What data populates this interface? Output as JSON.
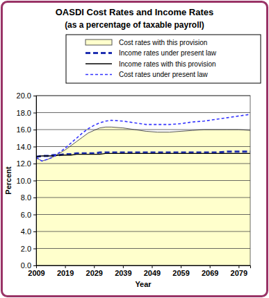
{
  "chart_data": {
    "type": "line",
    "title": "OASDI Cost Rates and Income Rates",
    "subtitle": "(as a percentage of taxable payroll)",
    "xlabel": "Year",
    "ylabel": "Percent",
    "x": [
      2009,
      2011,
      2013,
      2015,
      2017,
      2019,
      2021,
      2023,
      2025,
      2027,
      2029,
      2031,
      2033,
      2035,
      2039,
      2043,
      2047,
      2051,
      2055,
      2059,
      2063,
      2067,
      2071,
      2075,
      2079,
      2083
    ],
    "series": [
      {
        "name": "Cost rates with this provision",
        "type": "area",
        "color": "#ffffcc",
        "line_style": "solid",
        "values": [
          12.7,
          12.3,
          12.5,
          12.8,
          13.2,
          13.6,
          14.1,
          14.6,
          15.1,
          15.6,
          15.9,
          16.2,
          16.3,
          16.3,
          16.2,
          16.0,
          15.8,
          15.7,
          15.7,
          15.8,
          15.9,
          16.0,
          16.0,
          16.0,
          16.0,
          15.9
        ]
      },
      {
        "name": "Income rates under present law",
        "type": "line",
        "color": "#1f2fb0",
        "line_style": "dashed",
        "values": [
          12.8,
          12.9,
          12.9,
          13.0,
          13.0,
          13.1,
          13.1,
          13.2,
          13.2,
          13.2,
          13.2,
          13.3,
          13.3,
          13.3,
          13.3,
          13.3,
          13.3,
          13.3,
          13.3,
          13.3,
          13.3,
          13.3,
          13.3,
          13.4,
          13.4,
          13.4
        ]
      },
      {
        "name": "Income rates with this provision",
        "type": "line",
        "color": "#000000",
        "line_style": "solid",
        "values": [
          12.8,
          12.9,
          12.9,
          12.9,
          13.0,
          13.0,
          13.0,
          13.1,
          13.1,
          13.1,
          13.1,
          13.1,
          13.2,
          13.2,
          13.2,
          13.2,
          13.2,
          13.2,
          13.2,
          13.2,
          13.2,
          13.2,
          13.2,
          13.2,
          13.2,
          13.2
        ]
      },
      {
        "name": "Cost rates under present law",
        "type": "line",
        "color": "#3333ff",
        "line_style": "dashed",
        "values": [
          12.7,
          12.3,
          12.5,
          12.8,
          13.3,
          13.8,
          14.4,
          15.0,
          15.6,
          16.1,
          16.5,
          16.8,
          17.0,
          17.1,
          17.0,
          16.8,
          16.6,
          16.6,
          16.6,
          16.7,
          16.9,
          17.0,
          17.2,
          17.4,
          17.6,
          17.8
        ]
      }
    ],
    "xlim": [
      2009,
      2083
    ],
    "xticks": [
      2009,
      2019,
      2029,
      2039,
      2049,
      2059,
      2069,
      2079
    ],
    "ylim": [
      0,
      20
    ],
    "yticks": [
      {
        "value": 0,
        "label": "0.0"
      },
      {
        "value": 2,
        "label": "2.0"
      },
      {
        "value": 4,
        "label": "4.0"
      },
      {
        "value": 6,
        "label": "6.0"
      },
      {
        "value": 8,
        "label": "8.0"
      },
      {
        "value": 10,
        "label": "10.0"
      },
      {
        "value": 12,
        "label": "12.0"
      },
      {
        "value": 14,
        "label": "14.0"
      },
      {
        "value": 16,
        "label": "16.0"
      },
      {
        "value": 18,
        "label": "18.0"
      },
      {
        "value": 20,
        "label": "20.0"
      }
    ],
    "grid": true,
    "legend": "top"
  }
}
